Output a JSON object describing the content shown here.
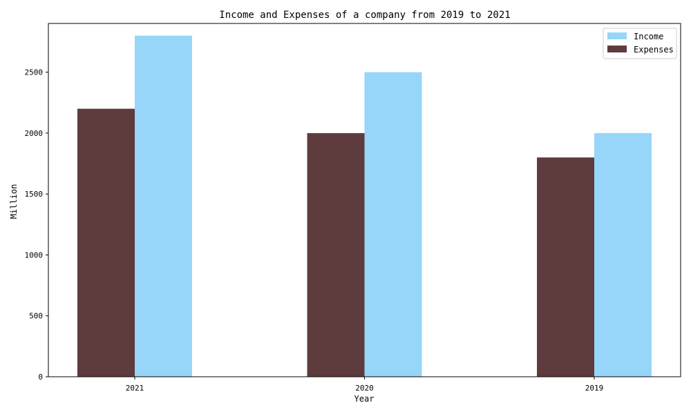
{
  "chart_data": {
    "type": "bar",
    "title": "Income and Expenses of a company from 2019 to 2021",
    "xlabel": "Year",
    "ylabel": "Million",
    "categories": [
      "2021",
      "2020",
      "2019"
    ],
    "series": [
      {
        "name": "Expenses",
        "values": [
          2200,
          2000,
          1800
        ],
        "color": "#5e3c3e"
      },
      {
        "name": "Income",
        "values": [
          2800,
          2500,
          2000
        ],
        "color": "#97d5f9"
      }
    ],
    "ylim": [
      0,
      2900
    ],
    "yticks": [
      0,
      500,
      1000,
      1500,
      2000,
      2500
    ],
    "legend": {
      "placement": "top-right",
      "order": [
        "Income",
        "Expenses"
      ]
    },
    "grid": false
  }
}
